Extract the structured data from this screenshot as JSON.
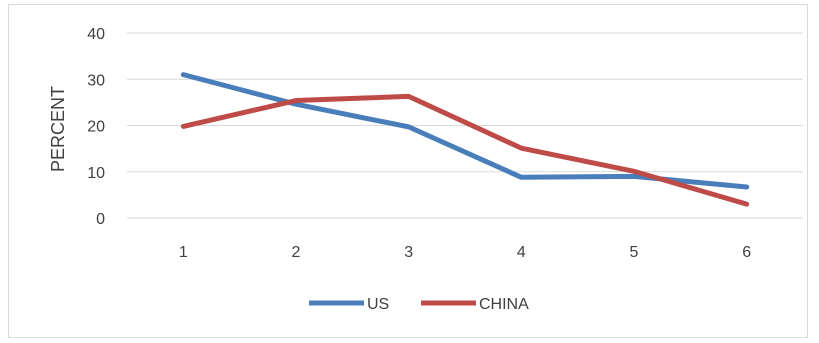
{
  "chart_data": {
    "type": "line",
    "title": "",
    "xlabel": "",
    "ylabel": "PERCENT",
    "categories": [
      "1",
      "2",
      "3",
      "4",
      "5",
      "6"
    ],
    "ylim": [
      0,
      40
    ],
    "yticks": [
      0,
      10,
      20,
      30,
      40
    ],
    "grid": true,
    "legend_position": "bottom",
    "series": [
      {
        "name": "US",
        "color": "#4a7ebb",
        "values": [
          31.0,
          24.6,
          19.7,
          8.8,
          9.0,
          6.7
        ]
      },
      {
        "name": "CHINA",
        "color": "#be4b48",
        "values": [
          19.8,
          25.4,
          26.3,
          15.1,
          10.1,
          3.0
        ]
      }
    ]
  }
}
